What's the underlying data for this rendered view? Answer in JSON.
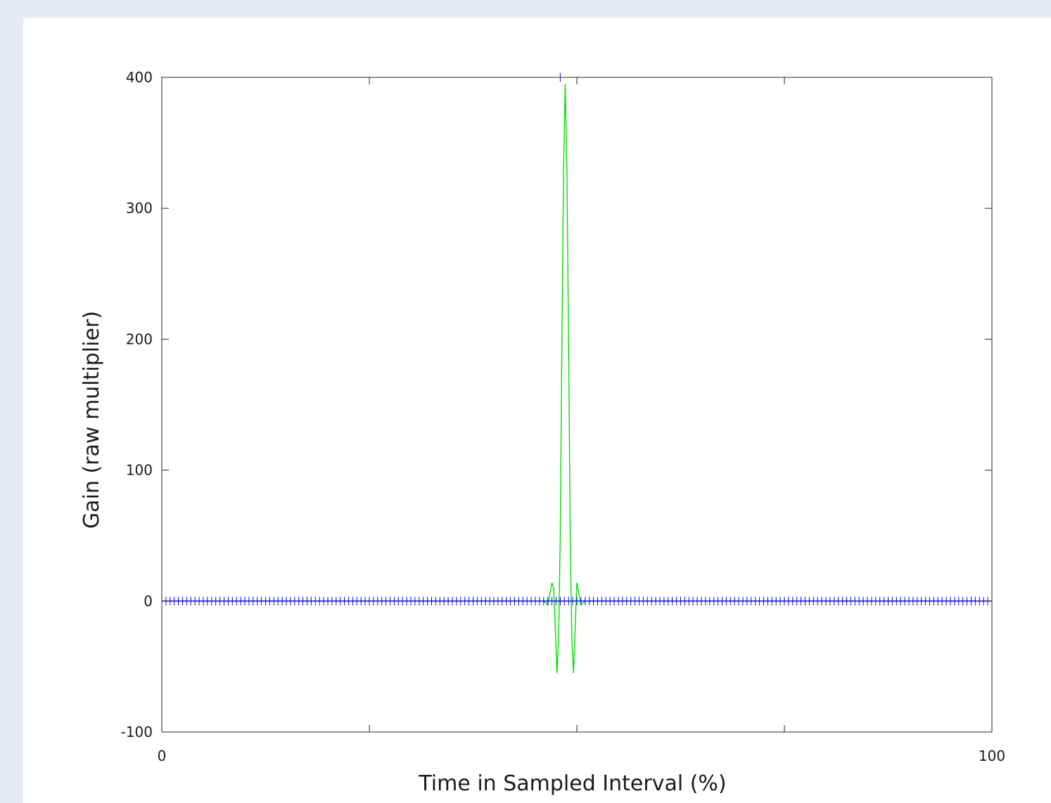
{
  "chart_data": {
    "type": "line",
    "xlabel": "Time in Sampled Interval (%)",
    "ylabel": "Gain (raw multiplier)",
    "xlim": [
      0,
      100
    ],
    "ylim": [
      -100,
      400
    ],
    "x_ticks": [
      0,
      25,
      50,
      75,
      100
    ],
    "x_tick_labels": [
      "0",
      "",
      "",
      "",
      "100"
    ],
    "y_ticks": [
      -100,
      0,
      100,
      200,
      300,
      400
    ],
    "y_tick_labels": [
      "-100",
      "0",
      "100",
      "200",
      "300",
      "400"
    ],
    "grid": false,
    "series": [
      {
        "color": "#00e000",
        "style": "line",
        "x": [
          0,
          46.0,
          46.5,
          47.0,
          47.2,
          47.4,
          47.6,
          47.8,
          48.0,
          48.2,
          48.4,
          48.6,
          48.8,
          49.0,
          49.2,
          49.4,
          49.6,
          49.8,
          50.0,
          50.5,
          51.0,
          100
        ],
        "y": [
          0,
          0,
          -3,
          14,
          10,
          -20,
          -55,
          -30,
          50,
          200,
          330,
          395,
          330,
          200,
          50,
          -30,
          -55,
          -20,
          14,
          -3,
          0,
          0
        ]
      },
      {
        "color": "#0000ff",
        "style": "markers",
        "marker": "+",
        "peak": {
          "x": 48.0,
          "y": 400
        },
        "baseline": {
          "x_start": 0,
          "x_end": 100,
          "y": 0,
          "count": 201
        }
      }
    ]
  }
}
